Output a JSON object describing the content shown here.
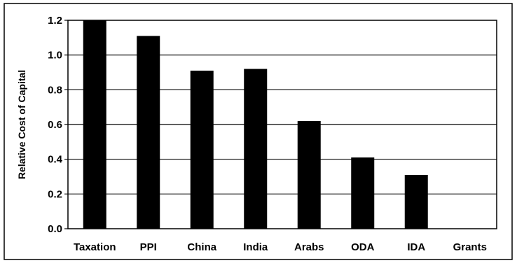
{
  "chart_data": {
    "type": "bar",
    "categories": [
      "Taxation",
      "PPI",
      "China",
      "India",
      "Arabs",
      "ODA",
      "IDA",
      "Grants"
    ],
    "values": [
      1.22,
      1.11,
      0.91,
      0.92,
      0.62,
      0.41,
      0.31,
      0.0
    ],
    "title": "",
    "xlabel": "",
    "ylabel": "Relative Cost of Capital",
    "ylim": [
      0,
      1.2
    ],
    "yticks": [
      "0.0",
      "0.2",
      "0.4",
      "0.6",
      "0.8",
      "1.0",
      "1.2"
    ],
    "grid": true,
    "legend": "none",
    "bar_color": "#000000"
  }
}
